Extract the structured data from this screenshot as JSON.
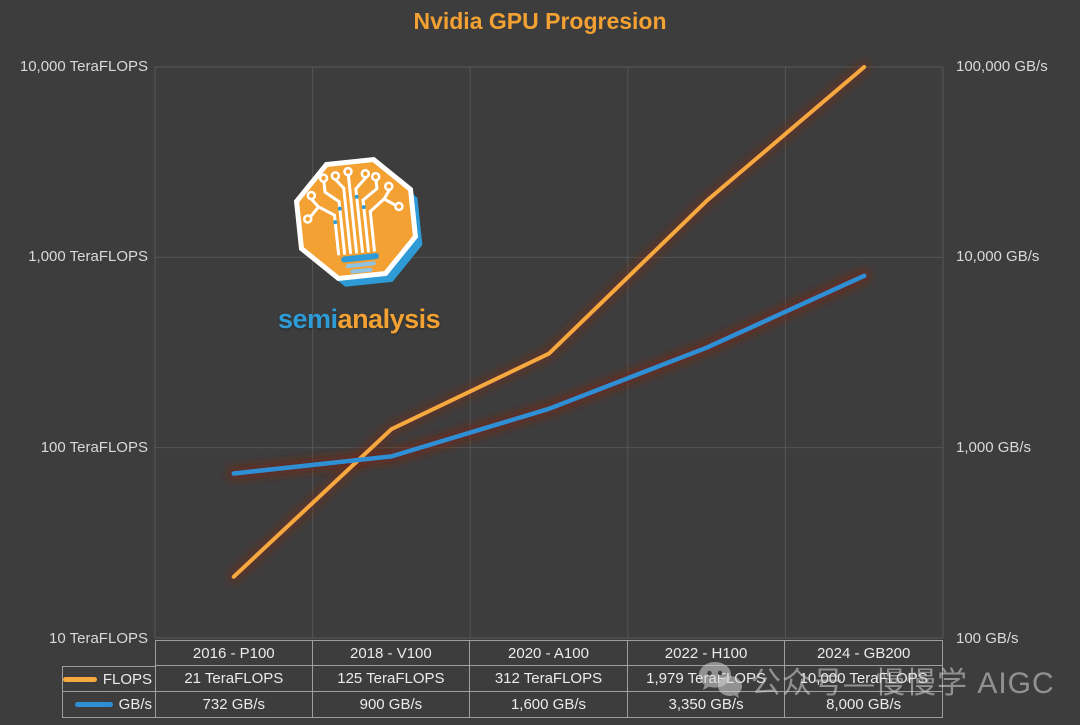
{
  "title": "Nvidia GPU Progresion",
  "logo": {
    "brand_semi": "semi",
    "brand_analysis": "analysis",
    "octagon_color": "#f2a132",
    "shadow_color": "#2e9ad6"
  },
  "watermark": {
    "icon": "wechat-icon",
    "text": "公众号—慢慢学 AIGC"
  },
  "colors": {
    "background": "#3d3d3d",
    "title": "#f2a132",
    "gridline": "#565656",
    "table_border": "#9e9e9e",
    "axis_text": "#d9d9d9",
    "glow": "#7a2410"
  },
  "chart_data": {
    "type": "line",
    "title": "Nvidia GPU Progresion",
    "categories": [
      "2016 - P100",
      "2018 - V100",
      "2020 - A100",
      "2022 - H100",
      "2024 - GB200"
    ],
    "series": [
      {
        "name": "FLOPS",
        "color": "#f5a93f",
        "axis": "left",
        "values": [
          21,
          125,
          312,
          1979,
          10000
        ],
        "labels": [
          "21 TeraFLOPS",
          "125 TeraFLOPS",
          "312 TeraFLOPS",
          "1,979 TeraFLOPS",
          "10,000 TeraFLOPS"
        ]
      },
      {
        "name": "GB/s",
        "color": "#2e8fd5",
        "axis": "right",
        "values": [
          732,
          900,
          1600,
          3350,
          8000
        ],
        "labels": [
          "732 GB/s",
          "900 GB/s",
          "1,600 GB/s",
          "3,350 GB/s",
          "8,000 GB/s"
        ]
      }
    ],
    "left_axis": {
      "scale": "log",
      "min": 10,
      "max": 10000,
      "ticks": [
        "10,000 TeraFLOPS",
        "1,000 TeraFLOPS",
        "100 TeraFLOPS",
        "10 TeraFLOPS"
      ]
    },
    "right_axis": {
      "scale": "log",
      "min": 100,
      "max": 100000,
      "ticks": [
        "100,000 GB/s",
        "10,000 GB/s",
        "1,000 GB/s",
        "100 GB/s"
      ]
    },
    "grid": true,
    "legend_position": "table-left"
  }
}
